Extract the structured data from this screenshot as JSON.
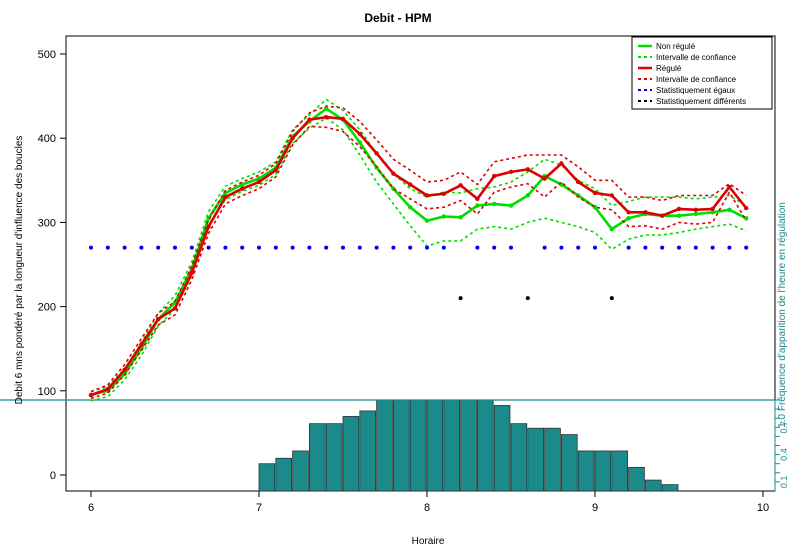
{
  "chart_data": {
    "type": "line",
    "title": "Debit - HPM",
    "xlabel": "Horaire",
    "ylabel": "Debit 6 mns pondéré par la longueur d'influence des boucles",
    "ylabel_right": "1.0 Fréquence d'apparition de l'heure en régulation",
    "xlim": [
      6,
      10
    ],
    "ylim": [
      -20,
      520
    ],
    "x_ticks": [
      "6",
      "7",
      "8",
      "9",
      "10"
    ],
    "y_ticks": [
      "0",
      "100",
      "200",
      "300",
      "400",
      "500"
    ],
    "right_ticks": [
      "0.1",
      "0.4",
      "0.7"
    ],
    "x": [
      6.0,
      6.1,
      6.2,
      6.3,
      6.4,
      6.5,
      6.6,
      6.7,
      6.8,
      6.9,
      7.0,
      7.1,
      7.2,
      7.3,
      7.4,
      7.5,
      7.6,
      7.7,
      7.8,
      7.9,
      8.0,
      8.1,
      8.2,
      8.3,
      8.4,
      8.5,
      8.6,
      8.7,
      8.8,
      8.9,
      9.0,
      9.1,
      9.2,
      9.3,
      9.4,
      9.5,
      9.6,
      9.7,
      9.8,
      9.9
    ],
    "series": [
      {
        "name": "Non régulé",
        "color": "#00dd00",
        "style": "solid",
        "values": [
          95,
          100,
          120,
          150,
          185,
          205,
          245,
          305,
          335,
          345,
          352,
          365,
          402,
          420,
          435,
          422,
          395,
          365,
          340,
          318,
          302,
          307,
          306,
          320,
          322,
          320,
          332,
          355,
          345,
          332,
          318,
          292,
          305,
          310,
          308,
          308,
          310,
          312,
          315,
          305
        ]
      },
      {
        "name": "Intervalle de confiance",
        "color": "#00dd00",
        "style": "dotted",
        "values_upper": [
          99,
          105,
          126,
          157,
          192,
          213,
          253,
          313,
          343,
          352,
          360,
          372,
          410,
          428,
          446,
          433,
          410,
          382,
          358,
          340,
          330,
          336,
          335,
          340,
          342,
          348,
          360,
          375,
          368,
          350,
          340,
          320,
          325,
          330,
          330,
          330,
          328,
          330,
          332,
          320
        ],
        "values_lower": [
          88,
          93,
          113,
          142,
          177,
          197,
          237,
          297,
          327,
          337,
          344,
          357,
          394,
          412,
          424,
          410,
          380,
          348,
          322,
          296,
          272,
          278,
          278,
          292,
          295,
          292,
          300,
          305,
          300,
          295,
          288,
          268,
          280,
          285,
          285,
          288,
          292,
          295,
          298,
          290
        ]
      },
      {
        "name": "Régulé",
        "color": "#dd0000",
        "style": "solid",
        "values": [
          95,
          102,
          125,
          155,
          185,
          198,
          240,
          295,
          330,
          340,
          348,
          362,
          400,
          422,
          425,
          423,
          405,
          382,
          358,
          345,
          332,
          334,
          344,
          328,
          355,
          360,
          363,
          352,
          370,
          348,
          335,
          332,
          312,
          312,
          308,
          316,
          315,
          316,
          342,
          317
        ]
      },
      {
        "name": "Intervalle de confiance",
        "color": "#dd0000",
        "style": "dotted",
        "values_upper": [
          99,
          107,
          131,
          162,
          192,
          206,
          248,
          303,
          338,
          348,
          356,
          370,
          408,
          430,
          438,
          436,
          420,
          398,
          375,
          362,
          348,
          350,
          360,
          345,
          372,
          376,
          380,
          380,
          380,
          366,
          350,
          350,
          330,
          330,
          326,
          332,
          332,
          332,
          346,
          332
        ],
        "values_lower": [
          91,
          97,
          119,
          148,
          178,
          190,
          232,
          287,
          322,
          332,
          340,
          354,
          392,
          414,
          413,
          408,
          390,
          366,
          340,
          328,
          316,
          318,
          326,
          310,
          336,
          342,
          346,
          330,
          348,
          330,
          318,
          315,
          295,
          296,
          292,
          300,
          298,
          300,
          336,
          302
        ]
      },
      {
        "name": "Statistiquement égaux",
        "color": "#0000ee",
        "style": "dots",
        "y_level": 270,
        "x": [
          6.0,
          6.1,
          6.2,
          6.3,
          6.4,
          6.5,
          6.6,
          6.7,
          6.8,
          6.9,
          7.0,
          7.1,
          7.2,
          7.3,
          7.4,
          7.5,
          7.6,
          7.7,
          7.8,
          7.9,
          8.0,
          8.1,
          8.3,
          8.4,
          8.5,
          8.7,
          8.8,
          8.9,
          9.0,
          9.2,
          9.3,
          9.4,
          9.5,
          9.6,
          9.7,
          9.8,
          9.9
        ]
      },
      {
        "name": "Statistiquement différents",
        "color": "#000000",
        "style": "dots",
        "y_level": 210,
        "x": [
          8.2,
          8.6,
          9.1
        ]
      }
    ],
    "frequency_bars": {
      "color": "#1a8a8a",
      "baseline_y": -20,
      "top_y": 88,
      "scale_label_values": [
        0.1,
        0.4,
        0.7,
        1.0
      ],
      "bars": [
        {
          "x": 7.0,
          "freq": 0.3
        },
        {
          "x": 7.1,
          "freq": 0.36
        },
        {
          "x": 7.2,
          "freq": 0.44
        },
        {
          "x": 7.3,
          "freq": 0.74
        },
        {
          "x": 7.4,
          "freq": 0.74
        },
        {
          "x": 7.5,
          "freq": 0.82
        },
        {
          "x": 7.6,
          "freq": 0.88
        },
        {
          "x": 7.7,
          "freq": 1.0
        },
        {
          "x": 7.8,
          "freq": 1.0
        },
        {
          "x": 7.9,
          "freq": 1.0
        },
        {
          "x": 8.0,
          "freq": 1.0
        },
        {
          "x": 8.1,
          "freq": 1.0
        },
        {
          "x": 8.2,
          "freq": 1.0
        },
        {
          "x": 8.3,
          "freq": 1.0
        },
        {
          "x": 8.4,
          "freq": 0.94
        },
        {
          "x": 8.5,
          "freq": 0.74
        },
        {
          "x": 8.6,
          "freq": 0.69
        },
        {
          "x": 8.7,
          "freq": 0.69
        },
        {
          "x": 8.8,
          "freq": 0.62
        },
        {
          "x": 8.9,
          "freq": 0.44
        },
        {
          "x": 9.0,
          "freq": 0.44
        },
        {
          "x": 9.1,
          "freq": 0.44
        },
        {
          "x": 9.2,
          "freq": 0.26
        },
        {
          "x": 9.3,
          "freq": 0.12
        },
        {
          "x": 9.4,
          "freq": 0.07
        }
      ]
    },
    "legend_position": "top-right",
    "legend": [
      {
        "label": "Non régulé",
        "color": "#00dd00",
        "style": "solid"
      },
      {
        "label": "Intervalle de confiance",
        "color": "#00dd00",
        "style": "dotted"
      },
      {
        "label": "Régulé",
        "color": "#dd0000",
        "style": "solid"
      },
      {
        "label": "Intervalle de confiance",
        "color": "#dd0000",
        "style": "dotted"
      },
      {
        "label": "Statistiquement égaux",
        "color": "#0000ee",
        "style": "dotted"
      },
      {
        "label": "Statistiquement différents",
        "color": "#000000",
        "style": "dotted"
      }
    ]
  }
}
